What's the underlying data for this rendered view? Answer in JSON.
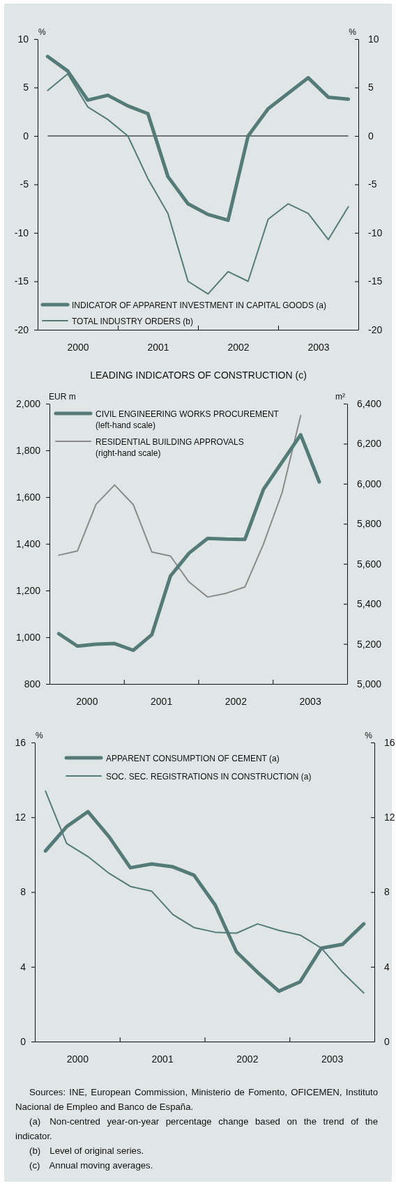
{
  "chart_data": [
    {
      "type": "line",
      "ylabel": "%",
      "y2label": "%",
      "x": [
        2000.125,
        2000.375,
        2000.625,
        2000.875,
        2001.125,
        2001.375,
        2001.625,
        2001.875,
        2002.125,
        2002.375,
        2002.625,
        2002.875,
        2003.125,
        2003.375,
        2003.625,
        2003.875
      ],
      "series": [
        {
          "name": "INDICATOR OF APPARENT INVESTMENT IN CAPITAL GOODS (a)",
          "color": "#557b79",
          "values": [
            8.2,
            6.7,
            3.7,
            4.2,
            3.1,
            2.3,
            -4.2,
            -7.0,
            -8.1,
            -8.7,
            0,
            2.8,
            4.4,
            6.0,
            4.0,
            3.8
          ]
        },
        {
          "name": "TOTAL INDUSTRY ORDERS (b)",
          "color": "#557b79",
          "values": [
            4.7,
            6.4,
            3.0,
            1.7,
            0,
            -4.4,
            -8.0,
            -15.0,
            -16.3,
            -14.0,
            -15.0,
            -8.6,
            -7.0,
            -8.0,
            -10.7,
            -7.3
          ]
        }
      ],
      "xlim": [
        2000,
        2004
      ],
      "xticks": [
        {
          "value": 2000.5,
          "label": "2000"
        },
        {
          "value": 2001,
          "label": null
        },
        {
          "value": 2001.5,
          "label": "2001"
        },
        {
          "value": 2002,
          "label": null
        },
        {
          "value": 2002.5,
          "label": "2002"
        },
        {
          "value": 2003,
          "label": null
        },
        {
          "value": 2003.5,
          "label": "2003"
        }
      ],
      "ylim": [
        -20,
        10
      ],
      "yticks": [
        -20,
        -15,
        -10,
        -5,
        0,
        5,
        10
      ],
      "y2lim": [
        -20,
        10
      ],
      "y2ticks": [
        -20,
        -15,
        -10,
        -5,
        0,
        5,
        10
      ],
      "ref_lines": [
        {
          "axis": "y",
          "value": 0,
          "color": "#000000"
        }
      ],
      "legend": "bottom left",
      "grid": false
    },
    {
      "type": "line",
      "title": "LEADING INDICATORS OF CONSTRUCTION (c)",
      "ylabel": "EUR m",
      "y2label": "m²",
      "x": [
        2000.125,
        2000.375,
        2000.625,
        2000.875,
        2001.125,
        2001.375,
        2001.625,
        2001.875,
        2002.125,
        2002.375,
        2002.625,
        2002.875,
        2003.125,
        2003.375,
        2003.625
      ],
      "series": [
        {
          "name": "CIVIL ENGINEERING WORKS PROCUREMENT\n(left-hand scale)",
          "color": "#557b79",
          "values": [
            1015,
            962,
            970,
            973,
            944,
            1011,
            1262,
            1360,
            1423,
            1420,
            1419,
            1633,
            1750,
            1867,
            1665
          ]
        },
        {
          "name": "RESIDENTIAL BUILDING APPROVALS\n(right-hand scale)",
          "color": "#8a8a8a",
          "axis": "y2",
          "values": [
            5643,
            5664,
            5897,
            5994,
            5896,
            5659,
            5639,
            5509,
            5434,
            5453,
            5484,
            5699,
            5955,
            6341,
            null
          ]
        }
      ],
      "xlim": [
        2000,
        2004
      ],
      "xticks": [
        {
          "value": 2000.5,
          "label": "2000"
        },
        {
          "value": 2001,
          "label": null
        },
        {
          "value": 2001.5,
          "label": "2001"
        },
        {
          "value": 2002,
          "label": null
        },
        {
          "value": 2002.5,
          "label": "2002"
        },
        {
          "value": 2003,
          "label": null
        },
        {
          "value": 2003.5,
          "label": "2003"
        }
      ],
      "ylim": [
        800,
        2000
      ],
      "yticks": [
        {
          "value": 800,
          "label": "800"
        },
        {
          "value": 1000,
          "label": "1,000"
        },
        {
          "value": 1200,
          "label": "1,200"
        },
        {
          "value": 1400,
          "label": "1,400"
        },
        {
          "value": 1600,
          "label": "1,600"
        },
        {
          "value": 1800,
          "label": "1,800"
        },
        {
          "value": 2000,
          "label": "2,000"
        }
      ],
      "y2lim": [
        5000,
        6400
      ],
      "y2ticks": [
        {
          "value": 5000,
          "label": "5,000"
        },
        {
          "value": 5200,
          "label": "5,200"
        },
        {
          "value": 5400,
          "label": "5,400"
        },
        {
          "value": 5600,
          "label": "5,600"
        },
        {
          "value": 5800,
          "label": "5,800"
        },
        {
          "value": 6000,
          "label": "6,000"
        },
        {
          "value": 6200,
          "label": "6,200"
        },
        {
          "value": 6400,
          "label": "6,400"
        }
      ],
      "legend": "top left",
      "grid": false
    },
    {
      "type": "line",
      "ylabel": "%",
      "y2label": "%",
      "x": [
        2000.125,
        2000.375,
        2000.625,
        2000.875,
        2001.125,
        2001.375,
        2001.625,
        2001.875,
        2002.125,
        2002.375,
        2002.625,
        2002.875,
        2003.125,
        2003.375,
        2003.625,
        2003.875
      ],
      "series": [
        {
          "name": "APPARENT CONSUMPTION OF CEMENT (a)",
          "color": "#557b79",
          "values": [
            10.2,
            11.5,
            12.3,
            10.95,
            9.3,
            9.5,
            9.35,
            8.9,
            7.3,
            4.8,
            3.7,
            2.7,
            3.2,
            5.0,
            5.2,
            6.3
          ]
        },
        {
          "name": "SOC. SEC. REGISTRATIONS IN CONSTRUCTION (a)",
          "color": "#557b79",
          "values": [
            13.4,
            10.6,
            9.9,
            9.0,
            8.3,
            8.05,
            6.8,
            6.1,
            5.85,
            5.8,
            6.3,
            5.95,
            5.7,
            5.0,
            3.7,
            2.6
          ]
        }
      ],
      "xlim": [
        2000,
        2004
      ],
      "xticks": [
        {
          "value": 2000.5,
          "label": "2000"
        },
        {
          "value": 2001,
          "label": null
        },
        {
          "value": 2001.5,
          "label": "2001"
        },
        {
          "value": 2002,
          "label": null
        },
        {
          "value": 2002.5,
          "label": "2002"
        },
        {
          "value": 2003,
          "label": null
        },
        {
          "value": 2003.5,
          "label": "2003"
        }
      ],
      "ylim": [
        0,
        16
      ],
      "yticks": [
        0,
        4,
        8,
        12,
        16
      ],
      "y2lim": [
        0,
        16
      ],
      "y2ticks": [
        0,
        4,
        8,
        12,
        16
      ],
      "legend": "top",
      "grid": false,
      "annotations": [
        "Sources: INE, European Commission, Ministerio de Fomento, OFICEMEN, Instituto Nacional de Empleo and Banco de España.",
        "(a) Non-centred year-on-year percentage change based on the trend of the indicator.",
        "(b) Level of original series.",
        "(c) Annual moving averages."
      ]
    }
  ]
}
